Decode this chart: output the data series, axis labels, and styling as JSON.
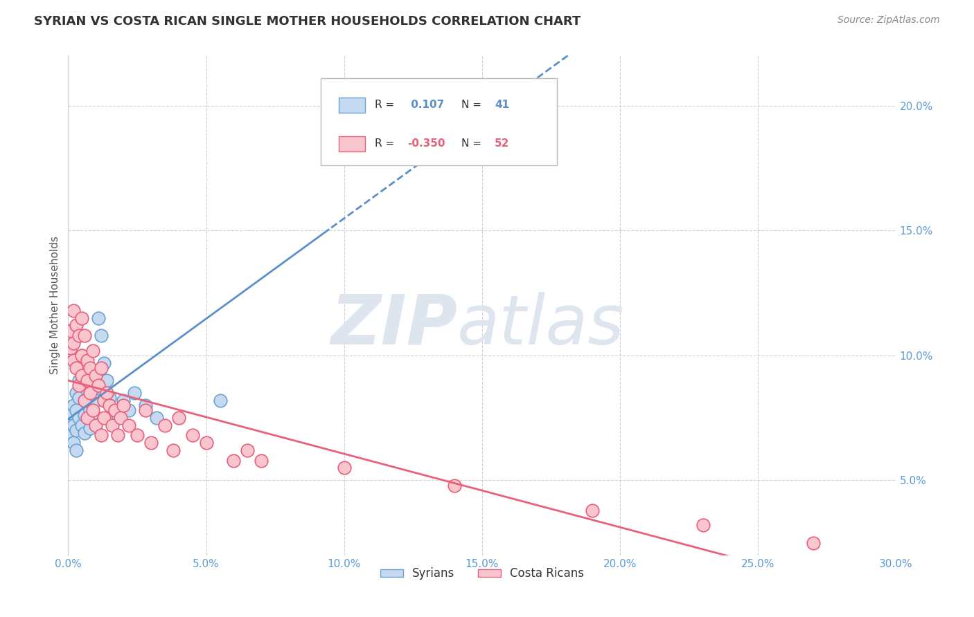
{
  "title": "SYRIAN VS COSTA RICAN SINGLE MOTHER HOUSEHOLDS CORRELATION CHART",
  "source": "Source: ZipAtlas.com",
  "ylabel": "Single Mother Households",
  "xlim": [
    0.0,
    0.3
  ],
  "ylim": [
    0.02,
    0.22
  ],
  "xticks": [
    0.0,
    0.05,
    0.1,
    0.15,
    0.2,
    0.25,
    0.3
  ],
  "xticklabels": [
    "0.0%",
    "5.0%",
    "10.0%",
    "15.0%",
    "20.0%",
    "25.0%",
    "30.0%"
  ],
  "yticks_right": [
    0.05,
    0.1,
    0.15,
    0.2
  ],
  "yticklabels_right": [
    "5.0%",
    "10.0%",
    "15.0%",
    "20.0%"
  ],
  "syrian_color": "#c5d9f0",
  "syrian_edge_color": "#6aa3d4",
  "costa_rican_color": "#f9c6d0",
  "costa_rican_edge_color": "#e8607a",
  "trend_syrian_color": "#5b8fc9",
  "trend_costa_rican_color": "#e8607a",
  "watermark_zip": "ZIP",
  "watermark_atlas": "atlas",
  "watermark_color": "#dde5ef",
  "background_color": "#ffffff",
  "grid_color": "#d0d0d0",
  "title_color": "#333333",
  "label_color": "#5b9bd5",
  "legend_box_color": "#ffffff",
  "legend_border_color": "#bbbbbb",
  "syrian_scatter_x": [
    0.001,
    0.001,
    0.001,
    0.002,
    0.002,
    0.002,
    0.003,
    0.003,
    0.003,
    0.003,
    0.004,
    0.004,
    0.004,
    0.005,
    0.005,
    0.005,
    0.005,
    0.006,
    0.006,
    0.006,
    0.007,
    0.007,
    0.008,
    0.008,
    0.009,
    0.009,
    0.01,
    0.01,
    0.011,
    0.012,
    0.013,
    0.014,
    0.015,
    0.018,
    0.02,
    0.022,
    0.024,
    0.028,
    0.032,
    0.055,
    0.095
  ],
  "syrian_scatter_y": [
    0.073,
    0.077,
    0.068,
    0.08,
    0.072,
    0.065,
    0.085,
    0.078,
    0.07,
    0.062,
    0.09,
    0.083,
    0.075,
    0.095,
    0.088,
    0.1,
    0.072,
    0.082,
    0.076,
    0.069,
    0.092,
    0.086,
    0.078,
    0.071,
    0.084,
    0.077,
    0.089,
    0.082,
    0.115,
    0.108,
    0.097,
    0.09,
    0.083,
    0.076,
    0.082,
    0.078,
    0.085,
    0.08,
    0.075,
    0.082,
    0.185
  ],
  "costa_rican_scatter_x": [
    0.001,
    0.001,
    0.002,
    0.002,
    0.002,
    0.003,
    0.003,
    0.004,
    0.004,
    0.005,
    0.005,
    0.005,
    0.006,
    0.006,
    0.007,
    0.007,
    0.007,
    0.008,
    0.008,
    0.009,
    0.009,
    0.01,
    0.01,
    0.011,
    0.012,
    0.012,
    0.013,
    0.013,
    0.014,
    0.015,
    0.016,
    0.017,
    0.018,
    0.019,
    0.02,
    0.022,
    0.025,
    0.028,
    0.03,
    0.035,
    0.038,
    0.04,
    0.045,
    0.05,
    0.06,
    0.065,
    0.07,
    0.1,
    0.14,
    0.19,
    0.23,
    0.27
  ],
  "costa_rican_scatter_y": [
    0.11,
    0.103,
    0.118,
    0.105,
    0.098,
    0.112,
    0.095,
    0.108,
    0.088,
    0.115,
    0.1,
    0.092,
    0.108,
    0.082,
    0.098,
    0.09,
    0.075,
    0.095,
    0.085,
    0.102,
    0.078,
    0.092,
    0.072,
    0.088,
    0.095,
    0.068,
    0.082,
    0.075,
    0.085,
    0.08,
    0.072,
    0.078,
    0.068,
    0.075,
    0.08,
    0.072,
    0.068,
    0.078,
    0.065,
    0.072,
    0.062,
    0.075,
    0.068,
    0.065,
    0.058,
    0.062,
    0.058,
    0.055,
    0.048,
    0.038,
    0.032,
    0.025
  ],
  "syrian_trend_solid_end": 0.095,
  "costa_rican_trend_solid_end": 0.3
}
